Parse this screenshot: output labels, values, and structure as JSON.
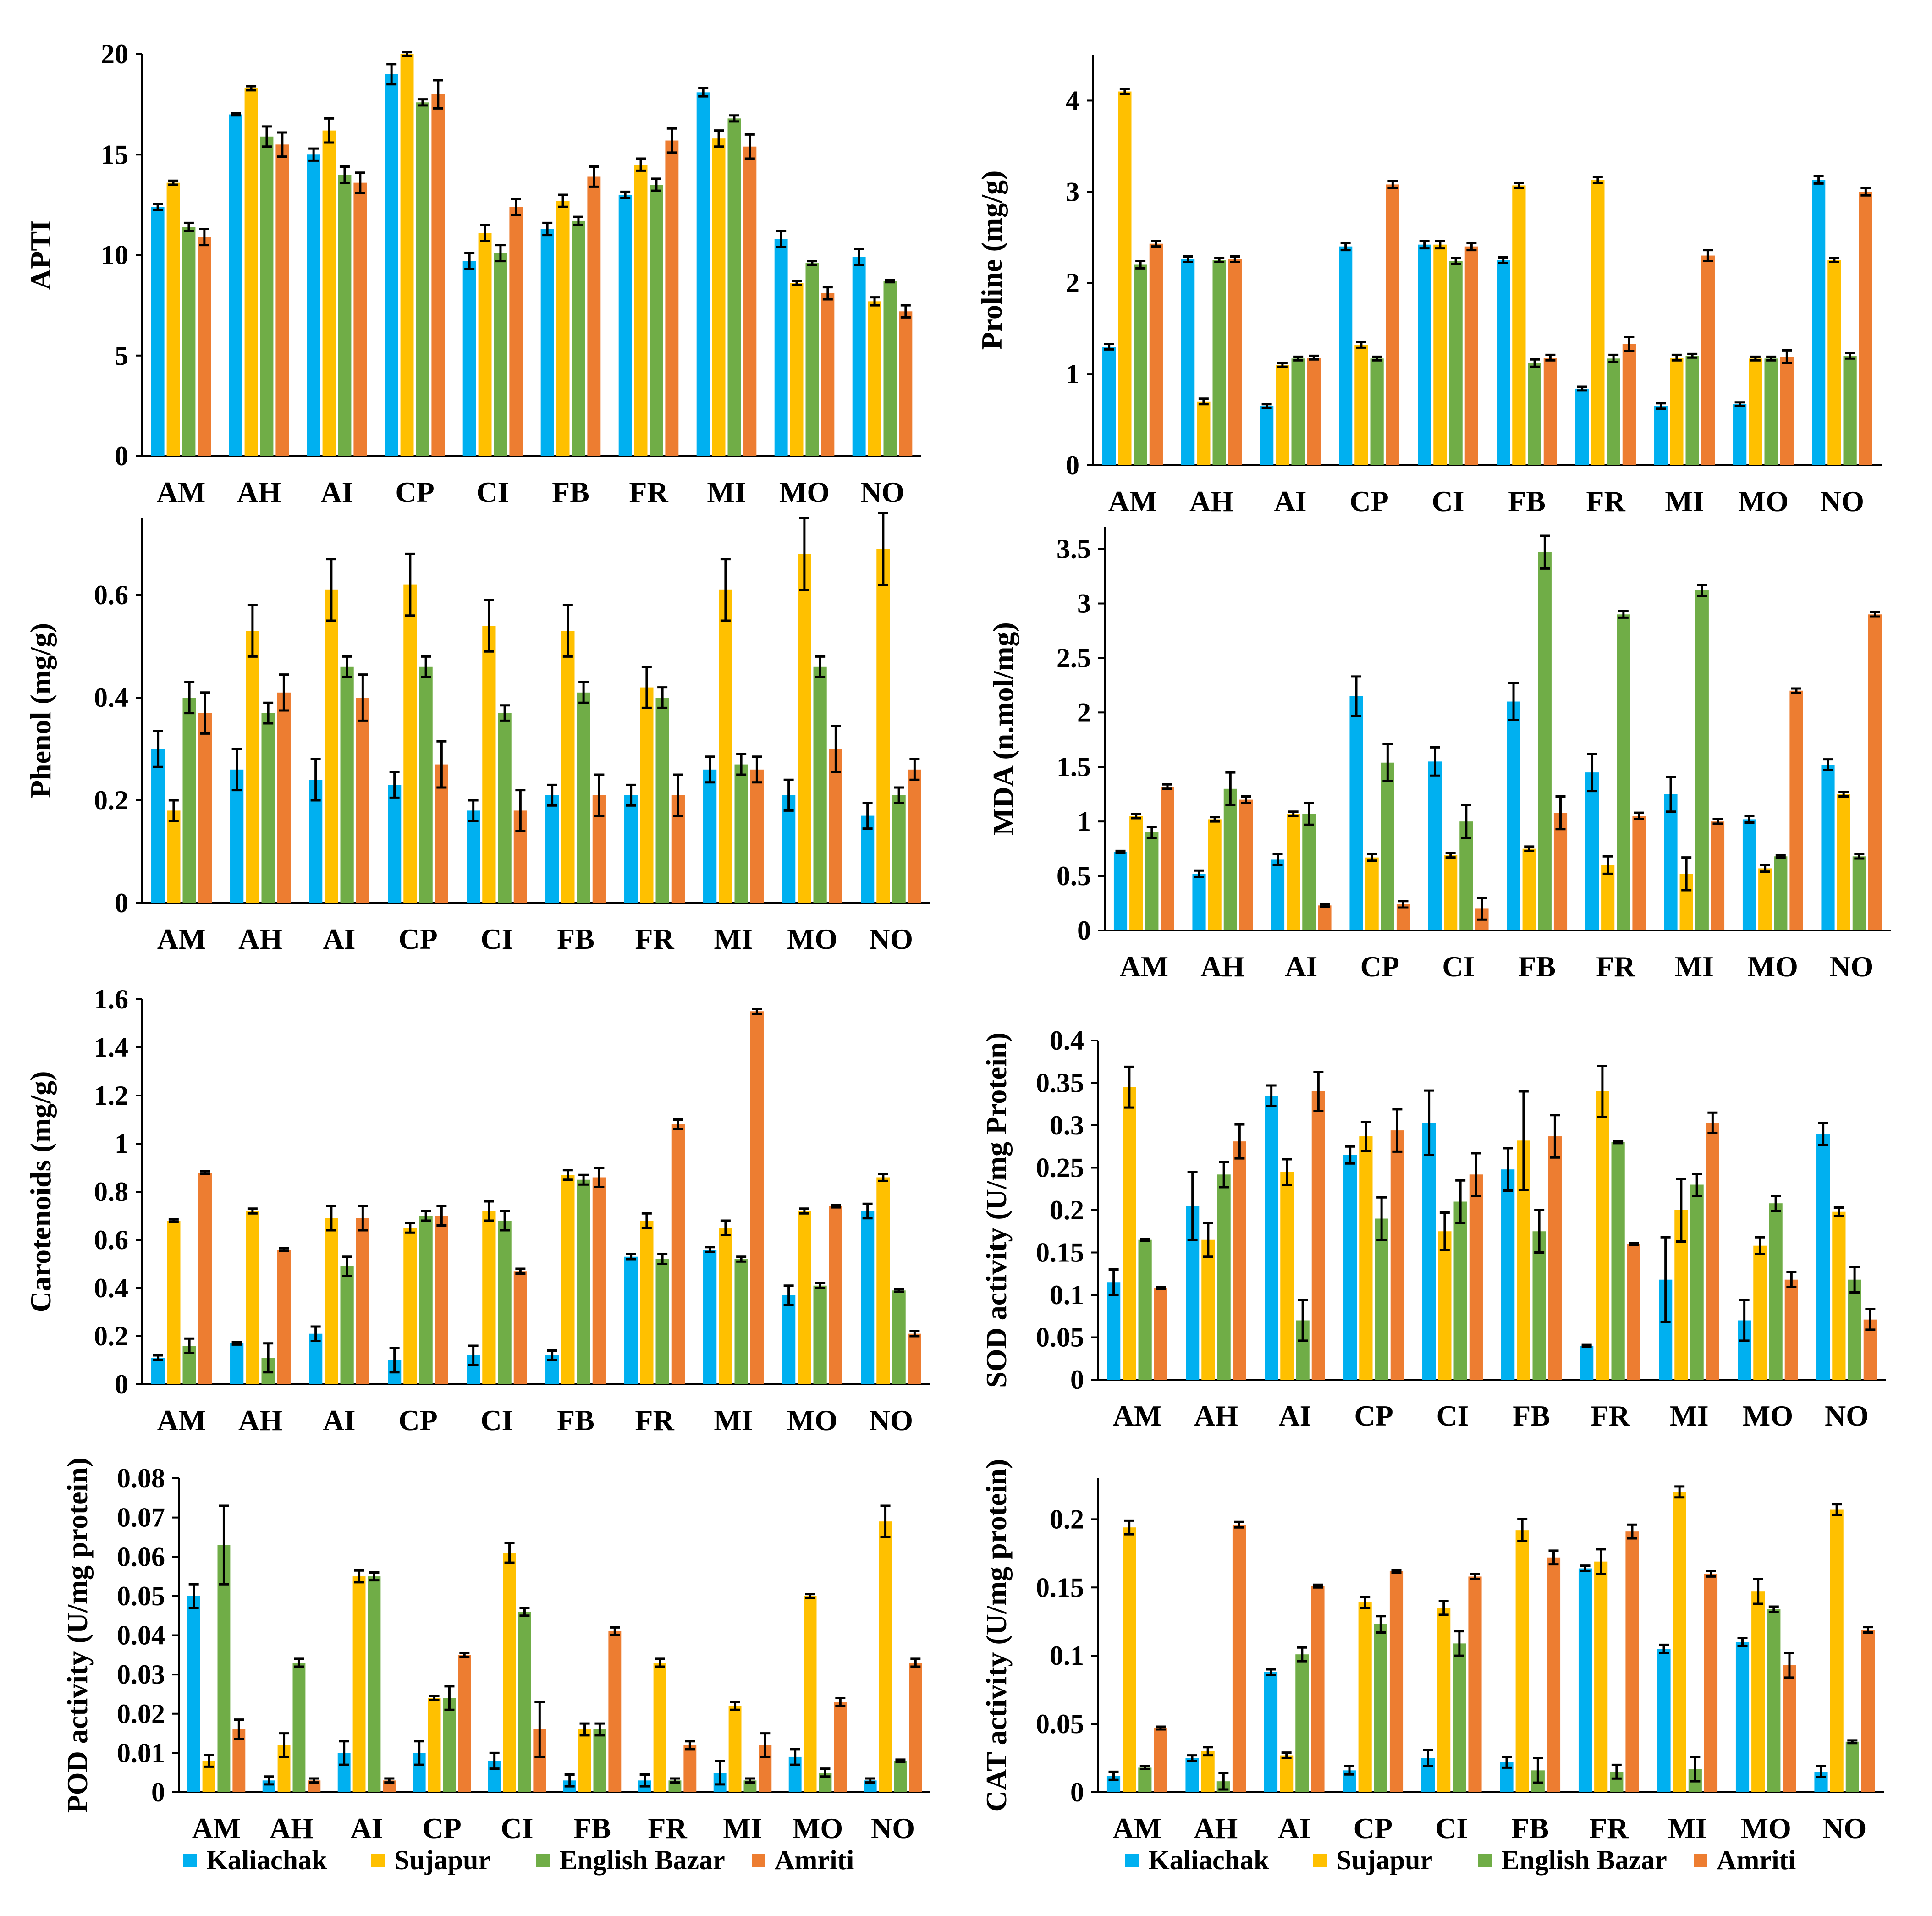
{
  "legend": [
    {
      "name": "Kaliachak",
      "color": "#00b0f0"
    },
    {
      "name": "Sujapur",
      "color": "#ffc000"
    },
    {
      "name": "English Bazar",
      "color": "#70ad47"
    },
    {
      "name": "Amriti",
      "color": "#ed7d31"
    }
  ],
  "chart_data": [
    {
      "type": "bar",
      "ylabel": "APTI",
      "ylim": [
        0,
        20
      ],
      "yticks": [
        "0",
        "5",
        "10",
        "15",
        "20"
      ],
      "categories": [
        "AM",
        "AH",
        "AI",
        "CP",
        "CI",
        "FB",
        "FR",
        "MI",
        "MO",
        "NO"
      ],
      "series": [
        {
          "name": "Kaliachak",
          "values": [
            12.4,
            17.0,
            15.0,
            19.0,
            9.7,
            11.3,
            13.0,
            18.1,
            10.8,
            9.9
          ],
          "errors": [
            0.15,
            0.05,
            0.3,
            0.5,
            0.4,
            0.3,
            0.15,
            0.2,
            0.4,
            0.4
          ]
        },
        {
          "name": "Sujapur",
          "values": [
            13.6,
            18.3,
            16.2,
            20.0,
            11.1,
            12.7,
            14.5,
            15.8,
            8.6,
            7.7
          ],
          "errors": [
            0.1,
            0.1,
            0.6,
            0.1,
            0.4,
            0.3,
            0.3,
            0.4,
            0.1,
            0.2
          ]
        },
        {
          "name": "English Bazar",
          "values": [
            11.4,
            15.9,
            14.0,
            17.6,
            10.1,
            11.7,
            13.5,
            16.8,
            9.6,
            8.7
          ],
          "errors": [
            0.2,
            0.5,
            0.4,
            0.15,
            0.4,
            0.2,
            0.3,
            0.15,
            0.1,
            0.05
          ]
        },
        {
          "name": "Amriti",
          "values": [
            10.9,
            15.5,
            13.6,
            18.0,
            12.4,
            13.9,
            15.7,
            15.4,
            8.1,
            7.2
          ],
          "errors": [
            0.4,
            0.6,
            0.5,
            0.7,
            0.4,
            0.5,
            0.6,
            0.6,
            0.3,
            0.3
          ]
        }
      ]
    },
    {
      "type": "bar",
      "ylabel": "Proline (mg/g)",
      "ylim": [
        0,
        4.5
      ],
      "yticks": [
        "0",
        "1",
        "2",
        "3",
        "4"
      ],
      "categories": [
        "AM",
        "AH",
        "AI",
        "CP",
        "CI",
        "FB",
        "FR",
        "MI",
        "MO",
        "NO"
      ],
      "series": [
        {
          "name": "Kaliachak",
          "values": [
            1.3,
            2.26,
            0.65,
            2.4,
            2.42,
            2.25,
            0.84,
            0.65,
            0.67,
            3.13
          ],
          "errors": [
            0.03,
            0.03,
            0.02,
            0.04,
            0.04,
            0.03,
            0.02,
            0.03,
            0.02,
            0.04
          ]
        },
        {
          "name": "Sujapur",
          "values": [
            4.1,
            0.7,
            1.1,
            1.32,
            2.42,
            3.07,
            3.13,
            1.18,
            1.17,
            2.25
          ],
          "errors": [
            0.03,
            0.03,
            0.02,
            0.03,
            0.04,
            0.03,
            0.03,
            0.03,
            0.02,
            0.02
          ]
        },
        {
          "name": "English Bazar",
          "values": [
            2.2,
            2.25,
            1.17,
            1.17,
            2.24,
            1.12,
            1.17,
            1.2,
            1.17,
            1.2
          ],
          "errors": [
            0.04,
            0.02,
            0.02,
            0.02,
            0.03,
            0.04,
            0.04,
            0.02,
            0.02,
            0.03
          ]
        },
        {
          "name": "Amriti",
          "values": [
            2.43,
            2.26,
            1.18,
            3.08,
            2.4,
            1.18,
            1.33,
            2.3,
            1.19,
            3.0
          ],
          "errors": [
            0.03,
            0.03,
            0.02,
            0.04,
            0.04,
            0.03,
            0.08,
            0.06,
            0.07,
            0.04
          ]
        }
      ]
    },
    {
      "type": "bar",
      "ylabel": "Phenol (mg/g)",
      "ylim": [
        0,
        0.75
      ],
      "yticks": [
        "0",
        "0.2",
        "0.4",
        "0.6"
      ],
      "categories": [
        "AM",
        "AH",
        "AI",
        "CP",
        "CI",
        "FB",
        "FR",
        "MI",
        "MO",
        "NO"
      ],
      "series": [
        {
          "name": "Kaliachak",
          "values": [
            0.3,
            0.26,
            0.24,
            0.23,
            0.18,
            0.21,
            0.21,
            0.26,
            0.21,
            0.17
          ],
          "errors": [
            0.035,
            0.04,
            0.04,
            0.025,
            0.02,
            0.02,
            0.02,
            0.025,
            0.03,
            0.025
          ]
        },
        {
          "name": "Sujapur",
          "values": [
            0.18,
            0.53,
            0.61,
            0.62,
            0.54,
            0.53,
            0.42,
            0.61,
            0.68,
            0.69
          ],
          "errors": [
            0.02,
            0.05,
            0.06,
            0.06,
            0.05,
            0.05,
            0.04,
            0.06,
            0.07,
            0.07
          ]
        },
        {
          "name": "English Bazar",
          "values": [
            0.4,
            0.37,
            0.46,
            0.46,
            0.37,
            0.41,
            0.4,
            0.27,
            0.46,
            0.21
          ],
          "errors": [
            0.03,
            0.02,
            0.02,
            0.02,
            0.015,
            0.02,
            0.02,
            0.02,
            0.02,
            0.015
          ]
        },
        {
          "name": "Amriti",
          "values": [
            0.37,
            0.41,
            0.4,
            0.27,
            0.18,
            0.21,
            0.21,
            0.26,
            0.3,
            0.26
          ],
          "errors": [
            0.04,
            0.035,
            0.045,
            0.045,
            0.04,
            0.04,
            0.04,
            0.025,
            0.045,
            0.02
          ]
        }
      ]
    },
    {
      "type": "bar",
      "ylabel": "MDA (n.mol/mg)",
      "ylim": [
        0,
        3.7
      ],
      "yticks": [
        "0",
        "0.5",
        "1",
        "1.5",
        "2",
        "2.5",
        "3",
        "3.5"
      ],
      "categories": [
        "AM",
        "AH",
        "AI",
        "CP",
        "CI",
        "FB",
        "FR",
        "MI",
        "MO",
        "NO"
      ],
      "series": [
        {
          "name": "Kaliachak",
          "values": [
            0.72,
            0.52,
            0.65,
            2.15,
            1.55,
            2.1,
            1.45,
            1.25,
            1.02,
            1.52
          ],
          "errors": [
            0.01,
            0.03,
            0.05,
            0.18,
            0.13,
            0.17,
            0.17,
            0.16,
            0.03,
            0.05
          ]
        },
        {
          "name": "Sujapur",
          "values": [
            1.05,
            1.02,
            1.07,
            0.67,
            0.69,
            0.75,
            0.6,
            0.52,
            0.57,
            1.25
          ],
          "errors": [
            0.02,
            0.02,
            0.02,
            0.03,
            0.02,
            0.02,
            0.08,
            0.15,
            0.03,
            0.02
          ]
        },
        {
          "name": "English Bazar",
          "values": [
            0.9,
            1.3,
            1.07,
            1.54,
            1.0,
            3.47,
            2.9,
            3.12,
            0.68,
            0.68
          ],
          "errors": [
            0.05,
            0.15,
            0.1,
            0.17,
            0.15,
            0.15,
            0.03,
            0.05,
            0.01,
            0.02
          ]
        },
        {
          "name": "Amriti",
          "values": [
            1.32,
            1.2,
            0.23,
            0.24,
            0.2,
            1.08,
            1.05,
            1.0,
            2.2,
            2.9
          ],
          "errors": [
            0.02,
            0.03,
            0.01,
            0.03,
            0.1,
            0.15,
            0.03,
            0.02,
            0.02,
            0.02
          ]
        }
      ]
    },
    {
      "type": "bar",
      "ylabel": "Carotenoids  (mg/g)",
      "ylim": [
        0,
        1.6
      ],
      "yticks": [
        "0",
        "0.2",
        "0.4",
        "0.6",
        "0.8",
        "1",
        "1.2",
        "1.4",
        "1.6"
      ],
      "categories": [
        "AM",
        "AH",
        "AI",
        "CP",
        "CI",
        "FB",
        "FR",
        "MI",
        "MO",
        "NO"
      ],
      "series": [
        {
          "name": "Kaliachak",
          "values": [
            0.11,
            0.17,
            0.21,
            0.1,
            0.12,
            0.12,
            0.53,
            0.56,
            0.37,
            0.72
          ],
          "errors": [
            0.01,
            0.005,
            0.03,
            0.05,
            0.04,
            0.02,
            0.01,
            0.01,
            0.04,
            0.03
          ]
        },
        {
          "name": "Sujapur",
          "values": [
            0.68,
            0.72,
            0.69,
            0.65,
            0.72,
            0.87,
            0.68,
            0.65,
            0.72,
            0.86
          ],
          "errors": [
            0.005,
            0.01,
            0.05,
            0.02,
            0.04,
            0.02,
            0.03,
            0.03,
            0.01,
            0.015
          ]
        },
        {
          "name": "English Bazar",
          "values": [
            0.16,
            0.11,
            0.49,
            0.7,
            0.68,
            0.85,
            0.52,
            0.52,
            0.41,
            0.39
          ],
          "errors": [
            0.03,
            0.06,
            0.04,
            0.02,
            0.04,
            0.02,
            0.02,
            0.01,
            0.01,
            0.005
          ]
        },
        {
          "name": "Amriti",
          "values": [
            0.88,
            0.56,
            0.69,
            0.7,
            0.47,
            0.86,
            1.08,
            1.55,
            0.74,
            0.21
          ],
          "errors": [
            0.005,
            0.005,
            0.05,
            0.04,
            0.01,
            0.04,
            0.02,
            0.01,
            0.005,
            0.01
          ]
        }
      ]
    },
    {
      "type": "bar",
      "ylabel": "SOD activity (U/mg Protein)",
      "ylim": [
        0,
        0.4
      ],
      "yticks": [
        "0",
        "0.05",
        "0.1",
        "0.15",
        "0.2",
        "0.25",
        "0.3",
        "0.35",
        "0.4"
      ],
      "categories": [
        "AM",
        "AH",
        "AI",
        "CP",
        "CI",
        "FB",
        "FR",
        "MI",
        "MO",
        "NO"
      ],
      "series": [
        {
          "name": "Kaliachak",
          "values": [
            0.115,
            0.205,
            0.335,
            0.265,
            0.303,
            0.248,
            0.04,
            0.118,
            0.07,
            0.29
          ],
          "errors": [
            0.015,
            0.04,
            0.012,
            0.01,
            0.038,
            0.025,
            0.001,
            0.05,
            0.024,
            0.013
          ]
        },
        {
          "name": "Sujapur",
          "values": [
            0.345,
            0.165,
            0.245,
            0.287,
            0.175,
            0.282,
            0.34,
            0.2,
            0.158,
            0.198
          ],
          "errors": [
            0.024,
            0.02,
            0.015,
            0.017,
            0.022,
            0.058,
            0.03,
            0.037,
            0.01,
            0.005
          ]
        },
        {
          "name": "English Bazar",
          "values": [
            0.165,
            0.242,
            0.07,
            0.19,
            0.21,
            0.175,
            0.28,
            0.23,
            0.208,
            0.118
          ],
          "errors": [
            0.001,
            0.015,
            0.024,
            0.025,
            0.025,
            0.025,
            0.001,
            0.013,
            0.009,
            0.015
          ]
        },
        {
          "name": "Amriti",
          "values": [
            0.108,
            0.281,
            0.34,
            0.294,
            0.242,
            0.287,
            0.16,
            0.303,
            0.118,
            0.071
          ],
          "errors": [
            0.001,
            0.02,
            0.023,
            0.025,
            0.025,
            0.025,
            0.001,
            0.012,
            0.009,
            0.012
          ]
        }
      ]
    },
    {
      "type": "bar",
      "ylabel": "POD activity (U/mg protein)",
      "ylim": [
        0,
        0.08
      ],
      "yticks": [
        "0",
        "0.01",
        "0.02",
        "0.03",
        "0.04",
        "0.05",
        "0.06",
        "0.07",
        "0.08"
      ],
      "categories": [
        "AM",
        "AH",
        "AI",
        "CP",
        "CI",
        "FB",
        "FR",
        "MI",
        "MO",
        "NO"
      ],
      "series": [
        {
          "name": "Kaliachak",
          "values": [
            0.05,
            0.003,
            0.01,
            0.01,
            0.008,
            0.003,
            0.003,
            0.005,
            0.009,
            0.003
          ],
          "errors": [
            0.003,
            0.001,
            0.003,
            0.003,
            0.002,
            0.0015,
            0.0015,
            0.003,
            0.002,
            0.0005
          ]
        },
        {
          "name": "Sujapur",
          "values": [
            0.008,
            0.012,
            0.055,
            0.024,
            0.061,
            0.016,
            0.033,
            0.022,
            0.05,
            0.069
          ],
          "errors": [
            0.0015,
            0.003,
            0.0015,
            0.0005,
            0.0025,
            0.0015,
            0.001,
            0.001,
            0.0005,
            0.004
          ]
        },
        {
          "name": "English Bazar",
          "values": [
            0.063,
            0.033,
            0.055,
            0.024,
            0.046,
            0.016,
            0.003,
            0.003,
            0.005,
            0.008
          ],
          "errors": [
            0.01,
            0.001,
            0.001,
            0.003,
            0.001,
            0.0015,
            0.0005,
            0.0005,
            0.001,
            0.0003
          ]
        },
        {
          "name": "Amriti",
          "values": [
            0.016,
            0.003,
            0.003,
            0.035,
            0.016,
            0.041,
            0.012,
            0.012,
            0.023,
            0.033
          ],
          "errors": [
            0.0025,
            0.0005,
            0.0005,
            0.0005,
            0.007,
            0.001,
            0.001,
            0.003,
            0.001,
            0.001
          ]
        }
      ]
    },
    {
      "type": "bar",
      "ylabel": "CAT activity (U/mg protein)",
      "ylim": [
        0,
        0.23
      ],
      "yticks": [
        "0",
        "0.05",
        "0.1",
        "0.15",
        "0.2"
      ],
      "categories": [
        "AM",
        "AH",
        "AI",
        "CP",
        "CI",
        "FB",
        "FR",
        "MI",
        "MO",
        "NO"
      ],
      "series": [
        {
          "name": "Kaliachak",
          "values": [
            0.012,
            0.025,
            0.088,
            0.016,
            0.025,
            0.022,
            0.164,
            0.105,
            0.11,
            0.015
          ],
          "errors": [
            0.003,
            0.002,
            0.002,
            0.003,
            0.006,
            0.004,
            0.002,
            0.003,
            0.003,
            0.004
          ]
        },
        {
          "name": "Sujapur",
          "values": [
            0.194,
            0.03,
            0.027,
            0.139,
            0.135,
            0.192,
            0.169,
            0.22,
            0.147,
            0.207
          ],
          "errors": [
            0.005,
            0.003,
            0.002,
            0.004,
            0.005,
            0.008,
            0.009,
            0.004,
            0.009,
            0.004
          ]
        },
        {
          "name": "English Bazar",
          "values": [
            0.018,
            0.008,
            0.101,
            0.123,
            0.109,
            0.016,
            0.015,
            0.017,
            0.134,
            0.037
          ],
          "errors": [
            0.001,
            0.006,
            0.005,
            0.006,
            0.009,
            0.009,
            0.005,
            0.009,
            0.002,
            0.001
          ]
        },
        {
          "name": "Amriti",
          "values": [
            0.047,
            0.196,
            0.151,
            0.162,
            0.158,
            0.172,
            0.191,
            0.16,
            0.093,
            0.119
          ],
          "errors": [
            0.001,
            0.002,
            0.001,
            0.001,
            0.002,
            0.005,
            0.005,
            0.002,
            0.009,
            0.002
          ]
        }
      ]
    }
  ]
}
